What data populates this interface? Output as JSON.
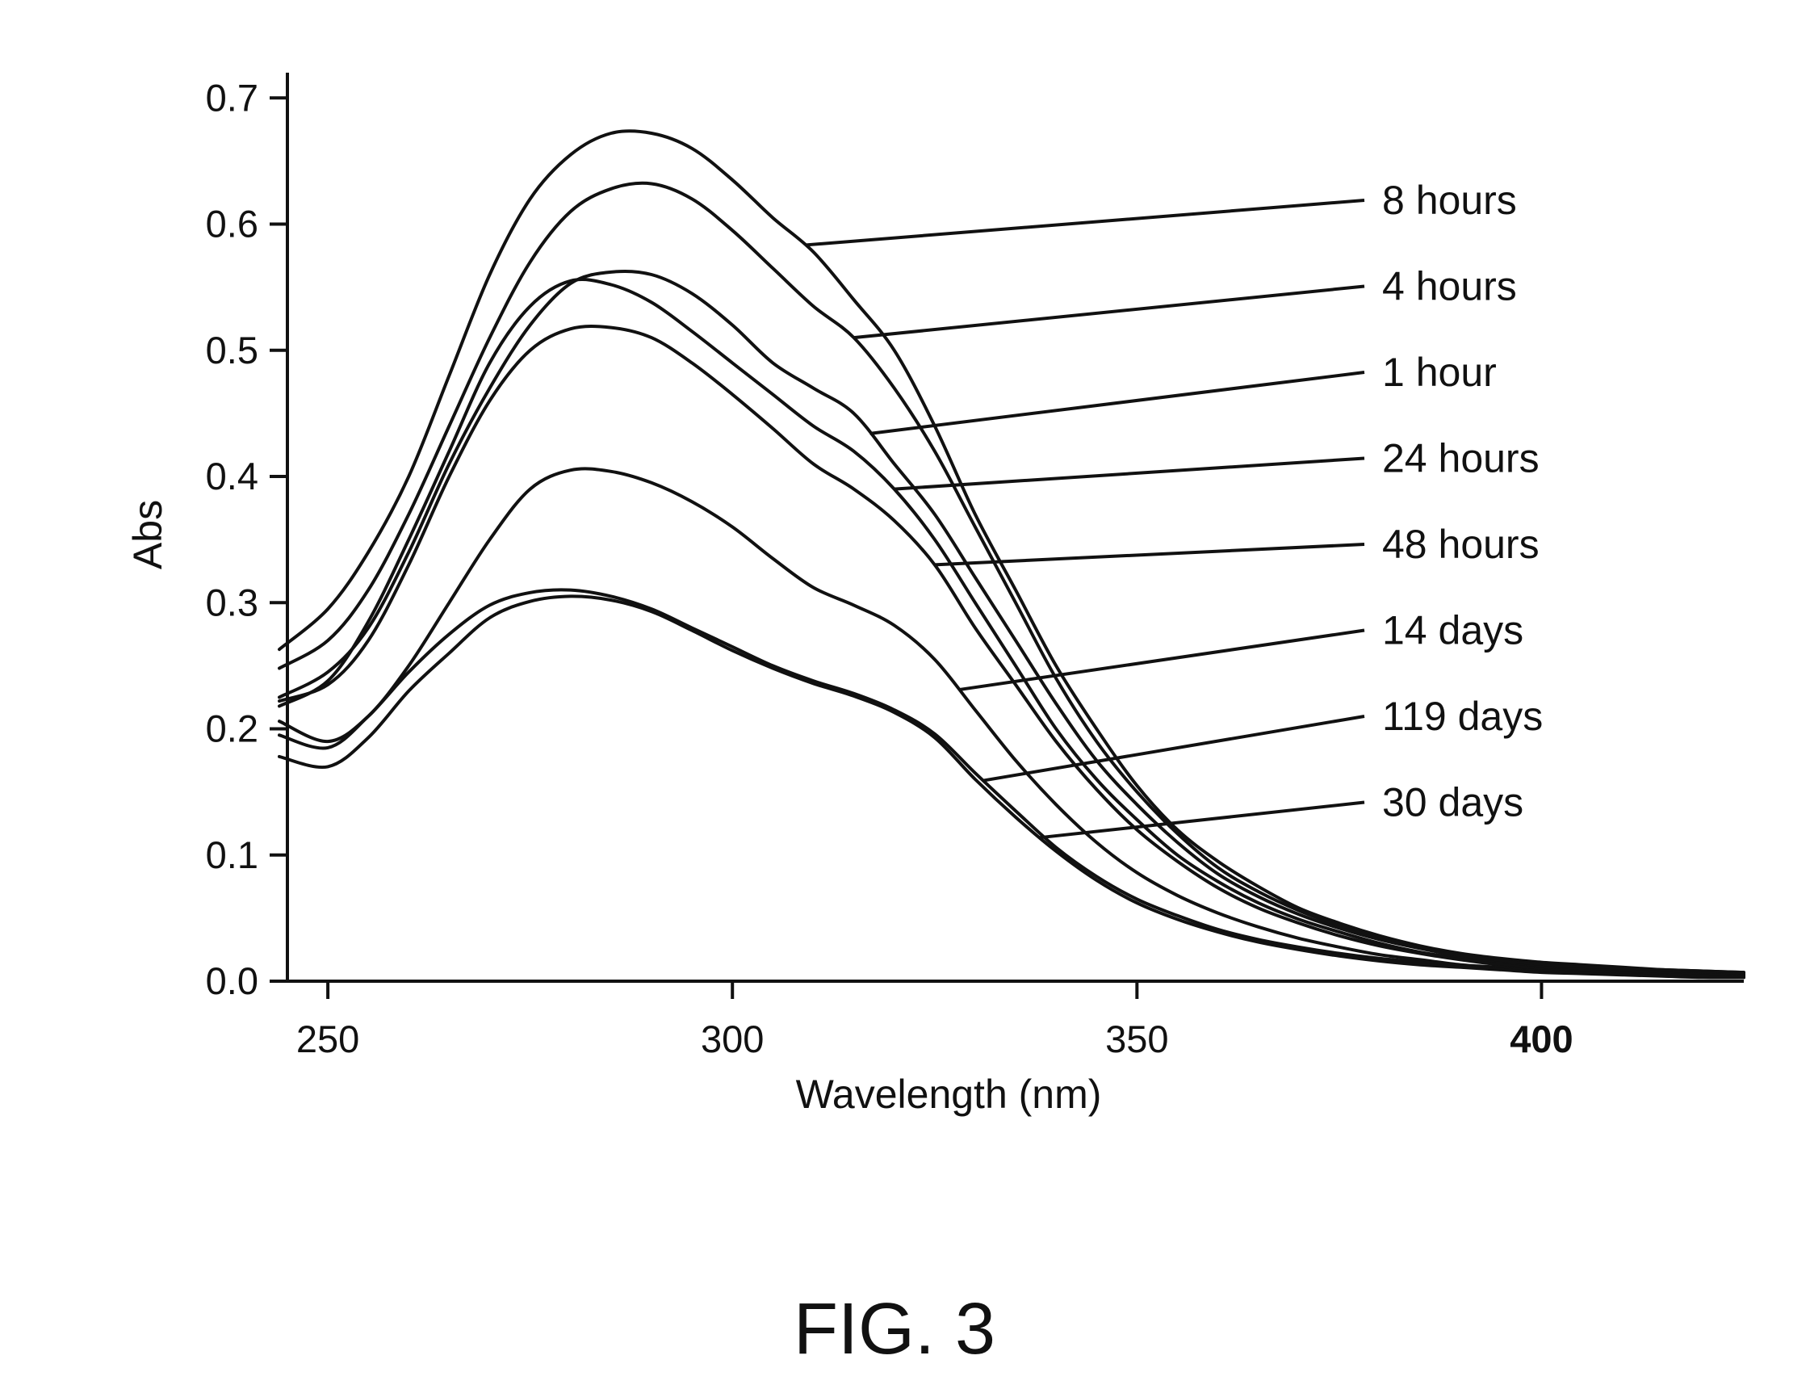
{
  "figure_caption": "FIG. 3",
  "colors": {
    "line": "#111111",
    "background": "#ffffff"
  },
  "chart_data": {
    "type": "line",
    "xlabel": "Wavelength (nm)",
    "ylabel": "Abs",
    "xlim": [
      245,
      425
    ],
    "ylim": [
      0.0,
      0.72
    ],
    "x_ticks": [
      {
        "value": 250,
        "label": "250"
      },
      {
        "value": 300,
        "label": "300"
      },
      {
        "value": 350,
        "label": "350"
      },
      {
        "value": 400,
        "label": "400"
      }
    ],
    "y_ticks": [
      {
        "value": 0.0,
        "label": "0.0"
      },
      {
        "value": 0.1,
        "label": "0.1"
      },
      {
        "value": 0.2,
        "label": "0.2"
      },
      {
        "value": 0.3,
        "label": "0.3"
      },
      {
        "value": 0.4,
        "label": "0.4"
      },
      {
        "value": 0.5,
        "label": "0.5"
      },
      {
        "value": 0.6,
        "label": "0.6"
      },
      {
        "value": 0.7,
        "label": "0.7"
      }
    ],
    "grid": false,
    "x": [
      244,
      250,
      255,
      260,
      265,
      270,
      275,
      280,
      285,
      290,
      295,
      300,
      305,
      310,
      315,
      320,
      325,
      330,
      335,
      340,
      345,
      350,
      355,
      360,
      365,
      370,
      375,
      380,
      385,
      390,
      395,
      400,
      405,
      410,
      415,
      420,
      425
    ],
    "series": [
      {
        "name": "8 hours",
        "label_at_x": 309,
        "values": [
          0.263,
          0.295,
          0.34,
          0.4,
          0.48,
          0.56,
          0.62,
          0.655,
          0.672,
          0.672,
          0.66,
          0.635,
          0.605,
          0.578,
          0.54,
          0.5,
          0.44,
          0.37,
          0.31,
          0.25,
          0.2,
          0.155,
          0.12,
          0.095,
          0.075,
          0.058,
          0.046,
          0.036,
          0.028,
          0.022,
          0.018,
          0.015,
          0.013,
          0.011,
          0.009,
          0.007,
          0.006
        ]
      },
      {
        "name": "4 hours",
        "label_at_x": 315,
        "values": [
          0.248,
          0.27,
          0.31,
          0.37,
          0.44,
          0.51,
          0.57,
          0.61,
          0.628,
          0.632,
          0.62,
          0.595,
          0.565,
          0.535,
          0.51,
          0.47,
          0.42,
          0.36,
          0.3,
          0.24,
          0.19,
          0.15,
          0.117,
          0.09,
          0.071,
          0.056,
          0.044,
          0.034,
          0.027,
          0.021,
          0.017,
          0.014,
          0.012,
          0.01,
          0.009,
          0.008,
          0.007
        ]
      },
      {
        "name": "1 hour",
        "label_at_x": 317,
        "values": [
          0.225,
          0.245,
          0.28,
          0.34,
          0.41,
          0.47,
          0.52,
          0.553,
          0.562,
          0.56,
          0.545,
          0.52,
          0.49,
          0.47,
          0.45,
          0.41,
          0.37,
          0.32,
          0.27,
          0.22,
          0.175,
          0.14,
          0.11,
          0.085,
          0.067,
          0.053,
          0.042,
          0.033,
          0.026,
          0.02,
          0.016,
          0.013,
          0.011,
          0.01,
          0.009,
          0.008,
          0.007
        ]
      },
      {
        "name": "24 hours",
        "label_at_x": 320,
        "values": [
          0.218,
          0.238,
          0.285,
          0.35,
          0.42,
          0.49,
          0.535,
          0.555,
          0.552,
          0.538,
          0.515,
          0.49,
          0.465,
          0.44,
          0.42,
          0.39,
          0.35,
          0.3,
          0.25,
          0.2,
          0.16,
          0.128,
          0.1,
          0.079,
          0.062,
          0.049,
          0.039,
          0.03,
          0.023,
          0.018,
          0.014,
          0.011,
          0.009,
          0.008,
          0.007,
          0.006,
          0.005
        ]
      },
      {
        "name": "48 hours",
        "label_at_x": 325,
        "values": [
          0.222,
          0.235,
          0.27,
          0.33,
          0.4,
          0.46,
          0.5,
          0.517,
          0.518,
          0.51,
          0.49,
          0.465,
          0.438,
          0.41,
          0.39,
          0.365,
          0.33,
          0.28,
          0.235,
          0.19,
          0.152,
          0.12,
          0.095,
          0.074,
          0.058,
          0.046,
          0.036,
          0.028,
          0.022,
          0.017,
          0.013,
          0.01,
          0.009,
          0.008,
          0.007,
          0.006,
          0.005
        ]
      },
      {
        "name": "14 days",
        "label_at_x": 328,
        "values": [
          0.206,
          0.19,
          0.21,
          0.25,
          0.3,
          0.35,
          0.39,
          0.405,
          0.404,
          0.395,
          0.38,
          0.36,
          0.335,
          0.312,
          0.298,
          0.282,
          0.255,
          0.215,
          0.175,
          0.14,
          0.11,
          0.086,
          0.068,
          0.054,
          0.043,
          0.034,
          0.027,
          0.021,
          0.017,
          0.013,
          0.011,
          0.009,
          0.008,
          0.007,
          0.006,
          0.005,
          0.004
        ]
      },
      {
        "name": "119 days",
        "label_at_x": 331,
        "values": [
          0.195,
          0.185,
          0.21,
          0.245,
          0.275,
          0.298,
          0.308,
          0.31,
          0.305,
          0.295,
          0.28,
          0.265,
          0.25,
          0.238,
          0.228,
          0.215,
          0.196,
          0.165,
          0.135,
          0.106,
          0.083,
          0.065,
          0.052,
          0.041,
          0.033,
          0.027,
          0.022,
          0.018,
          0.015,
          0.012,
          0.01,
          0.008,
          0.007,
          0.006,
          0.005,
          0.004,
          0.003
        ]
      },
      {
        "name": "30 days",
        "label_at_x": 338,
        "values": [
          0.178,
          0.17,
          0.193,
          0.23,
          0.26,
          0.288,
          0.301,
          0.305,
          0.302,
          0.293,
          0.278,
          0.262,
          0.248,
          0.236,
          0.226,
          0.213,
          0.193,
          0.16,
          0.13,
          0.103,
          0.08,
          0.062,
          0.049,
          0.039,
          0.031,
          0.025,
          0.02,
          0.016,
          0.013,
          0.011,
          0.009,
          0.007,
          0.006,
          0.005,
          0.004,
          0.003,
          0.003
        ]
      }
    ]
  }
}
